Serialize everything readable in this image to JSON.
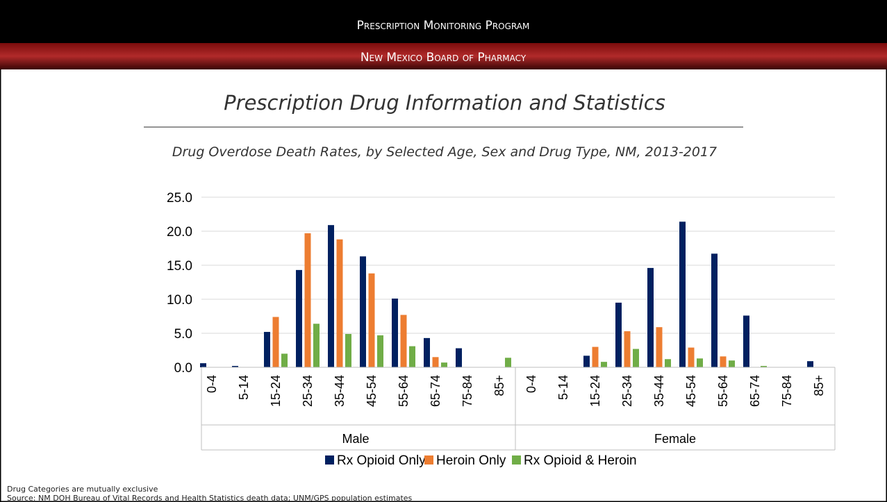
{
  "header": {
    "program": "Prescription Monitoring Program",
    "board": "New Mexico Board of Pharmacy"
  },
  "chart_data": {
    "type": "bar",
    "title": "Prescription Drug Information and Statistics",
    "subtitle": "Drug Overdose Death Rates, by Selected Age, Sex and Drug Type, NM, 2013-2017",
    "categories": [
      "0-4",
      "5-14",
      "15-24",
      "25-34",
      "35-44",
      "45-54",
      "55-64",
      "65-74",
      "75-84",
      "85+",
      "0-4",
      "5-14",
      "15-24",
      "25-34",
      "35-44",
      "45-54",
      "55-64",
      "65-74",
      "75-84",
      "85+"
    ],
    "group_labels": [
      "Male",
      "Female"
    ],
    "series": [
      {
        "name": "Rx Opioid Only",
        "color": "#002060",
        "values": [
          0.6,
          0.2,
          5.2,
          14.3,
          20.9,
          16.3,
          10.1,
          4.3,
          2.8,
          0,
          0,
          0,
          1.7,
          9.5,
          14.6,
          21.4,
          16.7,
          7.6,
          0,
          0.9
        ]
      },
      {
        "name": "Heroin Only",
        "color": "#ED7D31",
        "values": [
          0,
          0,
          7.4,
          19.7,
          18.8,
          13.8,
          7.7,
          1.5,
          0,
          0,
          0,
          0,
          3.0,
          5.3,
          5.9,
          2.9,
          1.6,
          0,
          0,
          0
        ]
      },
      {
        "name": "Rx Opioid & Heroin",
        "color": "#70AD47",
        "values": [
          0,
          0,
          2.0,
          6.4,
          4.9,
          4.7,
          3.1,
          0.7,
          0,
          1.4,
          0,
          0,
          0.8,
          2.7,
          1.2,
          1.3,
          1.0,
          0.2,
          0,
          0
        ]
      }
    ],
    "ylim": [
      0,
      25
    ],
    "yticks": [
      {
        "value": 0,
        "label": "0.0"
      },
      {
        "value": 5,
        "label": "5.0"
      },
      {
        "value": 10,
        "label": "10.0"
      },
      {
        "value": 15,
        "label": "15.0"
      },
      {
        "value": 20,
        "label": "20.0"
      },
      {
        "value": 25,
        "label": "25.0"
      }
    ],
    "grid": true,
    "legend": "bottom"
  },
  "notes": [
    "Drug Categories are mutually exclusive",
    "Source:  NM DOH Bureau of Vital Records and Health Statistics death data; UNM/GPS population estimates"
  ]
}
